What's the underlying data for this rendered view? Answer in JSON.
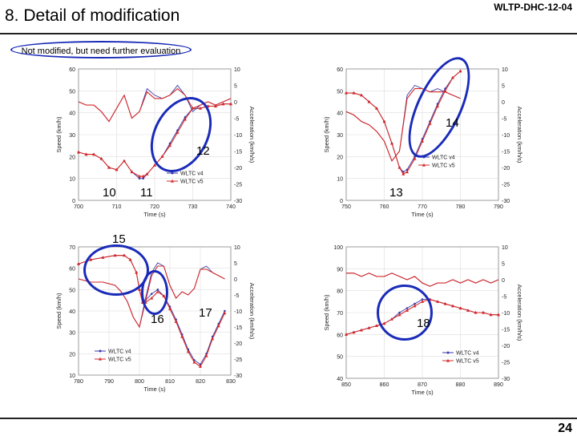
{
  "header": {
    "title": "8. Detail of modification",
    "doc_id": "WLTP-DHC-12-04"
  },
  "note": {
    "text": "Not modified, but need further evaluation"
  },
  "page_number": "24",
  "colors": {
    "v4": "#3a3aa8",
    "v5": "#d62828",
    "circle": "#1a2bb8"
  },
  "callouts": [
    "10",
    "11",
    "12",
    "13",
    "14",
    "15",
    "16",
    "17",
    "18"
  ],
  "chart_data": [
    {
      "type": "line",
      "xlabel": "Time (s)",
      "ylabel": "Speed (km/h)",
      "y2label": "Acceleration (km/h/s)",
      "xlim": [
        700,
        740
      ],
      "ylim": [
        0,
        60
      ],
      "y2lim": [
        -30,
        10
      ],
      "xticks": [
        "700",
        "710",
        "720",
        "730",
        "740"
      ],
      "yticks": [
        "0",
        "10",
        "20",
        "30",
        "40",
        "50",
        "60"
      ],
      "y2ticks": [
        "-30",
        "-25",
        "-20",
        "-15",
        "-10",
        "-5",
        "0",
        "5",
        "10"
      ],
      "legend": [
        "WLTC v4",
        "WLTC v5"
      ],
      "series": [
        {
          "name": "WLTC v4 speed",
          "x": [
            700,
            702,
            704,
            706,
            708,
            710,
            712,
            714,
            716,
            717,
            718,
            720,
            722,
            724,
            726,
            728,
            730,
            732,
            734,
            736,
            738,
            740
          ],
          "y": [
            22,
            21,
            21,
            19,
            15,
            14,
            18,
            13,
            10,
            10,
            12,
            16,
            20,
            26,
            32,
            38,
            42,
            42,
            43,
            43,
            44,
            44
          ]
        },
        {
          "name": "WLTC v5 speed",
          "x": [
            700,
            702,
            704,
            706,
            708,
            710,
            712,
            714,
            716,
            717,
            718,
            720,
            722,
            724,
            726,
            728,
            730,
            732,
            734,
            736,
            738,
            740
          ],
          "y": [
            22,
            21,
            21,
            19,
            15,
            14,
            18,
            13,
            11,
            11,
            12,
            16,
            20,
            25,
            31,
            37,
            42,
            42,
            43,
            43,
            44,
            44
          ]
        },
        {
          "name": "WLTC v4 acceleration",
          "x": [
            700,
            702,
            704,
            706,
            708,
            710,
            712,
            714,
            716,
            718,
            720,
            722,
            724,
            726,
            728,
            730,
            732,
            734,
            736,
            738,
            740
          ],
          "y": [
            0,
            -1,
            -1,
            -3,
            -6,
            -2,
            2,
            -5,
            -3,
            4,
            2,
            1,
            2,
            5,
            2,
            -3,
            -1,
            0,
            -1,
            0,
            1
          ]
        },
        {
          "name": "WLTC v5 acceleration",
          "x": [
            700,
            702,
            704,
            706,
            708,
            710,
            712,
            714,
            716,
            718,
            720,
            722,
            724,
            726,
            728,
            730,
            732,
            734,
            736,
            738,
            740
          ],
          "y": [
            0,
            -1,
            -1,
            -3,
            -6,
            -2,
            2,
            -5,
            -3,
            3,
            1,
            1,
            2,
            4,
            2,
            -2,
            -1,
            0,
            -1,
            0,
            1
          ]
        }
      ]
    },
    {
      "type": "line",
      "xlabel": "Time (s)",
      "ylabel": "Speed (km/h)",
      "y2label": "Acceleration (km/h/s)",
      "xlim": [
        750,
        790
      ],
      "ylim": [
        0,
        60
      ],
      "y2lim": [
        -30,
        10
      ],
      "xticks": [
        "750",
        "760",
        "770",
        "780",
        "790"
      ],
      "yticks": [
        "0",
        "10",
        "20",
        "30",
        "40",
        "50",
        "60"
      ],
      "y2ticks": [
        "-30",
        "-25",
        "-20",
        "-15",
        "-10",
        "-5",
        "0",
        "5",
        "10"
      ],
      "legend": [
        "WLTC v4",
        "WLTC v5"
      ],
      "series": [
        {
          "name": "WLTC v4 speed",
          "x": [
            750,
            752,
            754,
            756,
            758,
            760,
            762,
            764,
            765,
            766,
            768,
            770,
            772,
            774,
            776,
            778,
            780
          ],
          "y": [
            49,
            49,
            48,
            45,
            42,
            36,
            26,
            15,
            13,
            14,
            20,
            28,
            36,
            44,
            51,
            56,
            59
          ]
        },
        {
          "name": "WLTC v5 speed",
          "x": [
            750,
            752,
            754,
            756,
            758,
            760,
            762,
            764,
            765,
            766,
            768,
            770,
            772,
            774,
            776,
            778,
            780
          ],
          "y": [
            49,
            49,
            48,
            45,
            42,
            36,
            26,
            15,
            12,
            13,
            19,
            27,
            35,
            43,
            50,
            56,
            59
          ]
        },
        {
          "name": "WLTC v4 acceleration",
          "x": [
            750,
            752,
            754,
            756,
            758,
            760,
            762,
            764,
            766,
            768,
            770,
            772,
            774,
            776,
            778,
            780
          ],
          "y": [
            -3,
            -4,
            -6,
            -7,
            -9,
            -12,
            -18,
            -15,
            2,
            5,
            4,
            3,
            4,
            3,
            2,
            1
          ]
        },
        {
          "name": "WLTC v5 acceleration",
          "x": [
            750,
            752,
            754,
            756,
            758,
            760,
            762,
            764,
            766,
            768,
            770,
            772,
            774,
            776,
            778,
            780
          ],
          "y": [
            -3,
            -4,
            -6,
            -7,
            -9,
            -12,
            -18,
            -15,
            1,
            4,
            4,
            3,
            3,
            3,
            2,
            1
          ]
        }
      ]
    },
    {
      "type": "line",
      "xlabel": "Time (s)",
      "ylabel": "Speed (km/h)",
      "y2label": "Acceleration (km/h/s)",
      "xlim": [
        780,
        830
      ],
      "ylim": [
        10,
        70
      ],
      "y2lim": [
        -30,
        10
      ],
      "xticks": [
        "780",
        "790",
        "800",
        "810",
        "820",
        "830"
      ],
      "yticks": [
        "10",
        "20",
        "30",
        "40",
        "50",
        "60",
        "70"
      ],
      "y2ticks": [
        "-30",
        "-25",
        "-20",
        "-15",
        "-10",
        "-5",
        "0",
        "5",
        "10"
      ],
      "legend": [
        "WLTC v4",
        "WLTC v5"
      ],
      "series": [
        {
          "name": "WLTC v4 speed",
          "x": [
            780,
            784,
            788,
            792,
            795,
            797,
            799,
            800,
            801,
            802,
            804,
            806,
            808,
            810,
            812,
            814,
            816,
            818,
            820,
            822,
            824,
            826,
            828
          ],
          "y": [
            62,
            64,
            65,
            66,
            66,
            64,
            58,
            50,
            45,
            45,
            48,
            50,
            47,
            42,
            36,
            29,
            22,
            17,
            15,
            20,
            28,
            34,
            40
          ]
        },
        {
          "name": "WLTC v5 speed",
          "x": [
            780,
            784,
            788,
            792,
            795,
            797,
            799,
            800,
            801,
            802,
            804,
            806,
            808,
            810,
            812,
            814,
            816,
            818,
            820,
            822,
            824,
            826,
            828
          ],
          "y": [
            62,
            64,
            65,
            66,
            66,
            64,
            58,
            50,
            44,
            44,
            46,
            49,
            47,
            41,
            35,
            28,
            21,
            16,
            14,
            19,
            27,
            33,
            39
          ]
        },
        {
          "name": "WLTC v4 acceleration",
          "x": [
            780,
            784,
            788,
            792,
            794,
            796,
            798,
            800,
            802,
            804,
            806,
            808,
            810,
            812,
            814,
            816,
            818,
            820,
            822,
            824,
            826,
            828
          ],
          "y": [
            0,
            -1,
            -1,
            -2,
            -4,
            -7,
            -12,
            -15,
            -6,
            2,
            5,
            4,
            -2,
            -6,
            -4,
            -5,
            -3,
            3,
            4,
            2,
            1,
            0
          ]
        },
        {
          "name": "WLTC v5 acceleration",
          "x": [
            780,
            784,
            788,
            792,
            794,
            796,
            798,
            800,
            802,
            804,
            806,
            808,
            810,
            812,
            814,
            816,
            818,
            820,
            822,
            824,
            826,
            828
          ],
          "y": [
            0,
            -1,
            -1,
            -2,
            -4,
            -7,
            -12,
            -15,
            -7,
            1,
            4,
            4,
            -2,
            -6,
            -4,
            -5,
            -3,
            3,
            3,
            2,
            1,
            0
          ]
        }
      ]
    },
    {
      "type": "line",
      "xlabel": "Time (s)",
      "ylabel": "Speed (km/h)",
      "y2label": "Acceleration (km/h/s)",
      "xlim": [
        850,
        890
      ],
      "ylim": [
        40,
        100
      ],
      "y2lim": [
        -30,
        10
      ],
      "xticks": [
        "850",
        "860",
        "870",
        "880",
        "890"
      ],
      "yticks": [
        "40",
        "50",
        "60",
        "70",
        "80",
        "90",
        "100"
      ],
      "y2ticks": [
        "-30",
        "-25",
        "-20",
        "-15",
        "-10",
        "-5",
        "0",
        "5",
        "10"
      ],
      "legend": [
        "WLTC v4",
        "WLTC v5"
      ],
      "series": [
        {
          "name": "WLTC v4 speed",
          "x": [
            850,
            852,
            854,
            856,
            858,
            860,
            862,
            864,
            866,
            868,
            870,
            872,
            874,
            876,
            878,
            880,
            882,
            884,
            886,
            888,
            890
          ],
          "y": [
            60,
            61,
            62,
            63,
            64,
            65,
            67,
            70,
            72,
            74,
            76,
            76,
            75,
            74,
            73,
            72,
            71,
            70,
            70,
            69,
            69
          ]
        },
        {
          "name": "WLTC v5 speed",
          "x": [
            850,
            852,
            854,
            856,
            858,
            860,
            862,
            864,
            866,
            868,
            870,
            872,
            874,
            876,
            878,
            880,
            882,
            884,
            886,
            888,
            890
          ],
          "y": [
            60,
            61,
            62,
            63,
            64,
            65,
            67,
            69,
            71,
            73,
            75,
            76,
            75,
            74,
            73,
            72,
            71,
            70,
            70,
            69,
            69
          ]
        },
        {
          "name": "WLTC v4 acceleration",
          "x": [
            850,
            852,
            854,
            856,
            858,
            860,
            862,
            864,
            866,
            868,
            870,
            872,
            874,
            876,
            878,
            880,
            882,
            884,
            886,
            888,
            890
          ],
          "y": [
            2,
            2,
            1,
            2,
            1,
            1,
            2,
            1,
            0,
            1,
            -1,
            -2,
            -1,
            -1,
            0,
            -1,
            0,
            -1,
            0,
            -1,
            0
          ]
        },
        {
          "name": "WLTC v5 acceleration",
          "x": [
            850,
            852,
            854,
            856,
            858,
            860,
            862,
            864,
            866,
            868,
            870,
            872,
            874,
            876,
            878,
            880,
            882,
            884,
            886,
            888,
            890
          ],
          "y": [
            2,
            2,
            1,
            2,
            1,
            1,
            2,
            1,
            0,
            1,
            -1,
            -2,
            -1,
            -1,
            0,
            -1,
            0,
            -1,
            0,
            -1,
            0
          ]
        }
      ]
    }
  ]
}
